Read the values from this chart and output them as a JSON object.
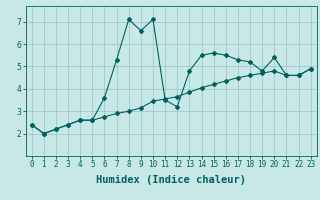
{
  "xlabel": "Humidex (Indice chaleur)",
  "xlim": [
    -0.5,
    23.5
  ],
  "ylim": [
    1.5,
    7.7
  ],
  "background_color": "#c8e8e8",
  "grid_color": "#a0c8c8",
  "line_color": "#006060",
  "line1_x": [
    0,
    1,
    2,
    3,
    4,
    5,
    6,
    7,
    8,
    9,
    10,
    11,
    12,
    13,
    14,
    15,
    16,
    17,
    18,
    19,
    20,
    21,
    22,
    23
  ],
  "line1_y": [
    2.4,
    2.0,
    2.2,
    2.4,
    2.6,
    2.6,
    3.6,
    5.3,
    7.1,
    6.6,
    7.1,
    3.5,
    3.2,
    4.8,
    5.5,
    5.6,
    5.5,
    5.3,
    5.2,
    4.8,
    5.4,
    4.6,
    4.6,
    4.9
  ],
  "line2_x": [
    0,
    1,
    2,
    3,
    4,
    5,
    6,
    7,
    8,
    9,
    10,
    11,
    12,
    13,
    14,
    15,
    16,
    17,
    18,
    19,
    20,
    21,
    22,
    23
  ],
  "line2_y": [
    2.4,
    2.0,
    2.2,
    2.4,
    2.6,
    2.6,
    2.75,
    2.9,
    3.0,
    3.15,
    3.45,
    3.55,
    3.65,
    3.85,
    4.05,
    4.2,
    4.35,
    4.5,
    4.6,
    4.7,
    4.8,
    4.6,
    4.6,
    4.9
  ],
  "xtick_labels": [
    "0",
    "1",
    "2",
    "3",
    "4",
    "5",
    "6",
    "7",
    "8",
    "9",
    "10",
    "11",
    "12",
    "13",
    "14",
    "15",
    "16",
    "17",
    "18",
    "19",
    "20",
    "21",
    "22",
    "23"
  ],
  "ytick_values": [
    2,
    3,
    4,
    5,
    6,
    7
  ],
  "tick_fontsize": 5.5,
  "label_fontsize": 7.5
}
